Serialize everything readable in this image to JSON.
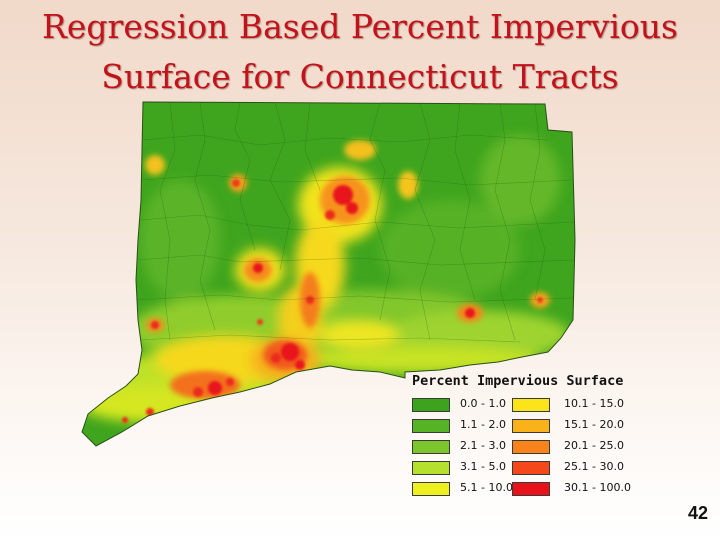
{
  "slide": {
    "title_line1": "Regression Based Percent Impervious",
    "title_line2": "Surface for Connecticut Tracts",
    "page_number": "42"
  },
  "map": {
    "region": "Connecticut",
    "description": "census tracts shaded by percent impervious surface"
  },
  "legend": {
    "title": "Percent Impervious Surface",
    "classes": [
      {
        "label": "0.0 - 1.0",
        "color": "#3ea31c"
      },
      {
        "label": "1.1 - 2.0",
        "color": "#56b326"
      },
      {
        "label": "2.1 - 3.0",
        "color": "#7cc52c"
      },
      {
        "label": "3.1 - 5.0",
        "color": "#b6e02e"
      },
      {
        "label": "5.1 - 10.0",
        "color": "#eef01f"
      },
      {
        "label": "10.1 - 15.0",
        "color": "#fbe41a"
      },
      {
        "label": "15.1 - 20.0",
        "color": "#fab21a"
      },
      {
        "label": "20.1 - 25.0",
        "color": "#f8831a"
      },
      {
        "label": "25.1 - 30.0",
        "color": "#f4481a"
      },
      {
        "label": "30.1 - 100.0",
        "color": "#e8121a"
      }
    ]
  }
}
